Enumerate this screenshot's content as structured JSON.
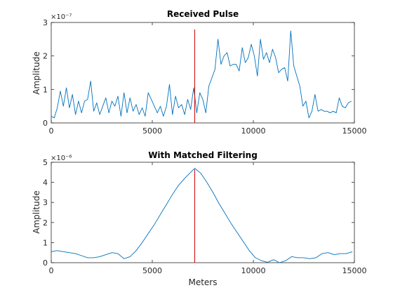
{
  "colors": {
    "series": "#0072bd",
    "marker": "#cc0000",
    "axes": "#262626"
  },
  "chart_data": [
    {
      "type": "line",
      "title": "Received Pulse",
      "xlabel": "",
      "ylabel": "Amplitude",
      "xlim": [
        0,
        15000
      ],
      "ylim": [
        0,
        3e-07
      ],
      "y_exponent_label": "×10⁻⁷",
      "xticks": [
        0,
        5000,
        10000,
        15000
      ],
      "xtick_labels": [
        "0",
        "5000",
        "10000",
        "15000"
      ],
      "yticks": [
        0,
        1e-07,
        2e-07,
        3e-07
      ],
      "ytick_labels": [
        "0",
        "1",
        "2",
        "3"
      ],
      "grid": false,
      "vline_x": 7100,
      "x": [
        0,
        150,
        300,
        450,
        600,
        750,
        900,
        1050,
        1200,
        1350,
        1500,
        1650,
        1800,
        1950,
        2100,
        2250,
        2400,
        2550,
        2700,
        2850,
        3000,
        3150,
        3300,
        3450,
        3600,
        3750,
        3900,
        4050,
        4200,
        4350,
        4500,
        4650,
        4800,
        4950,
        5100,
        5250,
        5400,
        5550,
        5700,
        5850,
        6000,
        6150,
        6300,
        6450,
        6600,
        6750,
        6900,
        7050,
        7200,
        7350,
        7500,
        7650,
        7800,
        7950,
        8100,
        8250,
        8400,
        8550,
        8700,
        8850,
        9000,
        9150,
        9300,
        9450,
        9600,
        9750,
        9900,
        10050,
        10200,
        10350,
        10500,
        10650,
        10800,
        10950,
        11100,
        11250,
        11400,
        11550,
        11700,
        11850,
        12000,
        12150,
        12300,
        12450,
        12600,
        12750,
        12900,
        13050,
        13200,
        13350,
        13500,
        13650,
        13800,
        13950,
        14100,
        14250,
        14400,
        14550,
        14700,
        14850
      ],
      "values": [
        2e-08,
        1.5e-08,
        4.5e-08,
        9.5e-08,
        5e-08,
        1.05e-07,
        4.5e-08,
        8.5e-08,
        2.5e-08,
        6.5e-08,
        3e-08,
        6.5e-08,
        7e-08,
        1.25e-07,
        3.5e-08,
        6e-08,
        2.5e-08,
        5e-08,
        7.5e-08,
        3e-08,
        6.5e-08,
        5e-08,
        8e-08,
        2e-08,
        9e-08,
        3e-08,
        7.5e-08,
        3.5e-08,
        5.5e-08,
        2.5e-08,
        4.5e-08,
        2e-08,
        9e-08,
        7e-08,
        5e-08,
        3e-08,
        5e-08,
        2e-08,
        5e-08,
        1.15e-07,
        2.5e-08,
        8e-08,
        4.5e-08,
        5.5e-08,
        2.5e-08,
        7e-08,
        4e-08,
        1.05e-07,
        3e-08,
        9e-08,
        7e-08,
        3e-08,
        1.1e-07,
        1.35e-07,
        1.6e-07,
        2.5e-07,
        1.75e-07,
        2e-07,
        2.1e-07,
        1.7e-07,
        1.75e-07,
        1.75e-07,
        1.55e-07,
        2.25e-07,
        1.8e-07,
        1.95e-07,
        2.35e-07,
        2e-07,
        1.4e-07,
        2.5e-07,
        1.9e-07,
        2.1e-07,
        1.8e-07,
        2.2e-07,
        1.95e-07,
        1.5e-07,
        1.6e-07,
        1.65e-07,
        1.25e-07,
        2.75e-07,
        1.7e-07,
        1.4e-07,
        1.1e-07,
        5e-08,
        6.5e-08,
        1.5e-08,
        3.5e-08,
        8.5e-08,
        3.5e-08,
        4e-08,
        3.5e-08,
        3.5e-08,
        3e-08,
        3.5e-08,
        3e-08,
        7.5e-08,
        5e-08,
        4.5e-08,
        6e-08,
        6.5e-08
      ]
    },
    {
      "type": "line",
      "title": "With Matched Filtering",
      "xlabel": "Meters",
      "ylabel": "Amplitude",
      "xlim": [
        0,
        15000
      ],
      "ylim": [
        0,
        5e-06
      ],
      "y_exponent_label": "×10⁻⁶",
      "xticks": [
        0,
        5000,
        10000,
        15000
      ],
      "xtick_labels": [
        "0",
        "5000",
        "10000",
        "15000"
      ],
      "yticks": [
        0,
        1e-06,
        2e-06,
        3e-06,
        4e-06,
        5e-06
      ],
      "ytick_labels": [
        "0",
        "1",
        "2",
        "3",
        "4",
        "5"
      ],
      "grid": false,
      "vline_x": 7100,
      "x": [
        0,
        300,
        600,
        900,
        1200,
        1500,
        1800,
        2100,
        2400,
        2700,
        3000,
        3300,
        3600,
        3900,
        4200,
        4500,
        4800,
        5100,
        5400,
        5700,
        6000,
        6300,
        6600,
        6900,
        7100,
        7400,
        7700,
        8000,
        8300,
        8600,
        8900,
        9200,
        9500,
        9800,
        10100,
        10400,
        10700,
        11000,
        11300,
        11600,
        11900,
        12200,
        12500,
        12800,
        13100,
        13400,
        13700,
        14000,
        14300,
        14600,
        14900
      ],
      "values": [
        5.5e-07,
        6e-07,
        5.5e-07,
        5e-07,
        4.5e-07,
        3.5e-07,
        2.5e-07,
        2.5e-07,
        3e-07,
        4e-07,
        5e-07,
        4.5e-07,
        2e-07,
        3e-07,
        6e-07,
        1e-06,
        1.45e-06,
        1.9e-06,
        2.4e-06,
        2.9e-06,
        3.4e-06,
        3.85e-06,
        4.2e-06,
        4.5e-06,
        4.7e-06,
        4.45e-06,
        4e-06,
        3.5e-06,
        2.95e-06,
        2.45e-06,
        1.95e-06,
        1.5e-06,
        1.05e-06,
        6e-07,
        2.5e-07,
        1e-07,
        2e-08,
        1.5e-07,
        0.0,
        1e-07,
        3e-07,
        2.5e-07,
        2.5e-07,
        2e-07,
        2.5e-07,
        4.5e-07,
        5e-07,
        4e-07,
        4.5e-07,
        4.5e-07,
        5.5e-07
      ]
    }
  ]
}
